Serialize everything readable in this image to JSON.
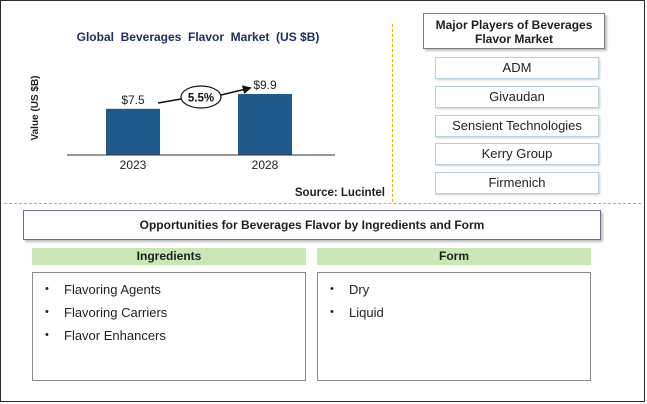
{
  "chart_data": {
    "type": "bar",
    "title": "Global  Beverages  Flavor  Market  (US $B)",
    "ylabel": "Value (US $B)",
    "categories": [
      "2023",
      "2028"
    ],
    "values": [
      7.5,
      9.9
    ],
    "value_labels": [
      "$7.5",
      "$9.9"
    ],
    "bar_color": "#1f5a8a",
    "growth_label": "5.5%",
    "ylim": [
      0,
      12.5
    ],
    "grid": false,
    "source": "Source: Lucintel"
  },
  "players": {
    "title": "Major Players of Beverages Flavor Market",
    "items": [
      "ADM",
      "Givaudan",
      "Sensient Technologies",
      "Kerry Group",
      "Firmenich"
    ]
  },
  "opportunities": {
    "title": "Opportunities for Beverages Flavor by Ingredients and Form",
    "ingredients": {
      "header": "Ingredients",
      "items": [
        "Flavoring Agents",
        "Flavoring Carriers",
        "Flavor Enhancers"
      ]
    },
    "form": {
      "header": "Form",
      "items": [
        "Dry",
        "Liquid"
      ]
    }
  }
}
